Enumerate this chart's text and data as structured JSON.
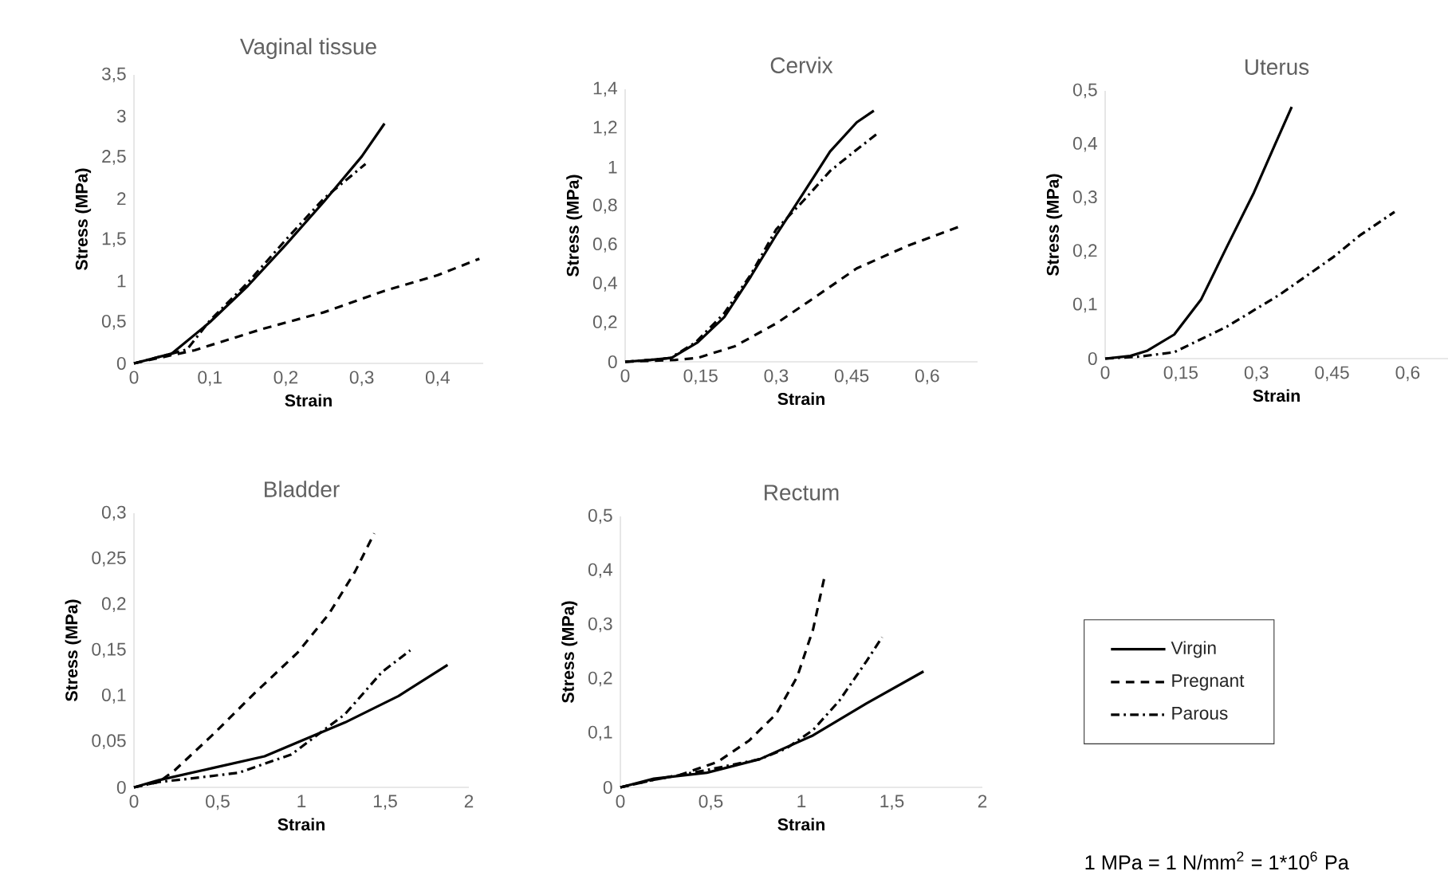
{
  "chart_data": [
    {
      "type": "line",
      "title": "Vaginal tissue",
      "xlabel": "Strain",
      "ylabel": "Stress (MPa)",
      "xlim": [
        0,
        0.46
      ],
      "ylim": [
        0,
        3.5
      ],
      "xticks": [
        0,
        {
          "value": 0.1,
          "label": "0,1"
        },
        {
          "value": 0.2,
          "label": "0,2"
        },
        {
          "value": 0.3,
          "label": "0,3"
        },
        {
          "value": 0.4,
          "label": "0,4"
        }
      ],
      "yticks": [
        0,
        {
          "value": 0.5,
          "label": "0,5"
        },
        1,
        {
          "value": 1.5,
          "label": "1,5"
        },
        2,
        {
          "value": 2.5,
          "label": "2,5"
        },
        3,
        {
          "value": 3.5,
          "label": "3,5"
        }
      ],
      "series": [
        {
          "color": "#000000",
          "line_style": "solid",
          "x": [
            0,
            0.05,
            0.1,
            0.15,
            0.2,
            0.25,
            0.3,
            0.33
          ],
          "values": [
            0,
            0.12,
            0.5,
            0.94,
            1.44,
            1.96,
            2.51,
            2.91
          ]
        },
        {
          "color": "#000000",
          "line_style": "dashed",
          "x": [
            0,
            0.05,
            0.08,
            0.17,
            0.25,
            0.33,
            0.4,
            0.455
          ],
          "values": [
            0,
            0.1,
            0.16,
            0.42,
            0.62,
            0.88,
            1.07,
            1.27
          ]
        },
        {
          "color": "#000000",
          "line_style": "dashdot",
          "x": [
            0,
            0.05,
            0.07,
            0.1,
            0.15,
            0.2,
            0.25,
            0.305
          ],
          "values": [
            0,
            0.12,
            0.17,
            0.52,
            0.98,
            1.5,
            2.0,
            2.42
          ]
        }
      ]
    },
    {
      "type": "line",
      "title": "Cervix",
      "xlabel": "Strain",
      "ylabel": "Stress (MPa)",
      "xlim": [
        0,
        0.7
      ],
      "ylim": [
        0,
        1.4
      ],
      "xticks": [
        0,
        {
          "value": 0.15,
          "label": "0,15"
        },
        {
          "value": 0.3,
          "label": "0,3"
        },
        {
          "value": 0.45,
          "label": "0,45"
        },
        {
          "value": 0.6,
          "label": "0,6"
        }
      ],
      "yticks": [
        0,
        {
          "value": 0.2,
          "label": "0,2"
        },
        {
          "value": 0.4,
          "label": "0,4"
        },
        {
          "value": 0.6,
          "label": "0,6"
        },
        {
          "value": 0.8,
          "label": "0,8"
        },
        1,
        {
          "value": 1.2,
          "label": "1,2"
        },
        {
          "value": 1.4,
          "label": "1,4"
        }
      ],
      "series": [
        {
          "color": "#000000",
          "line_style": "solid",
          "x": [
            0,
            0.05,
            0.092,
            0.144,
            0.197,
            0.25,
            0.302,
            0.355,
            0.407,
            0.46,
            0.494
          ],
          "values": [
            0,
            0.01,
            0.02,
            0.1,
            0.23,
            0.44,
            0.66,
            0.87,
            1.08,
            1.23,
            1.29
          ]
        },
        {
          "color": "#000000",
          "line_style": "dashed",
          "x": [
            0,
            0.1,
            0.144,
            0.218,
            0.302,
            0.376,
            0.46,
            0.565,
            0.67
          ],
          "values": [
            0,
            0.01,
            0.02,
            0.08,
            0.2,
            0.33,
            0.48,
            0.6,
            0.7
          ]
        },
        {
          "color": "#000000",
          "line_style": "dashdot",
          "x": [
            0,
            0.05,
            0.09,
            0.14,
            0.197,
            0.25,
            0.3,
            0.355,
            0.407,
            0.46,
            0.5
          ],
          "values": [
            0,
            0.01,
            0.02,
            0.1,
            0.25,
            0.45,
            0.68,
            0.83,
            0.98,
            1.09,
            1.17
          ]
        }
      ]
    },
    {
      "type": "line",
      "title": "Uterus",
      "xlabel": "Strain",
      "ylabel": "Stress (MPa)",
      "xlim": [
        0,
        0.68
      ],
      "ylim": [
        0,
        0.5
      ],
      "xticks": [
        0,
        {
          "value": 0.15,
          "label": "0,15"
        },
        {
          "value": 0.3,
          "label": "0,3"
        },
        {
          "value": 0.45,
          "label": "0,45"
        },
        {
          "value": 0.6,
          "label": "0,6"
        }
      ],
      "yticks": [
        0,
        {
          "value": 0.1,
          "label": "0,1"
        },
        {
          "value": 0.2,
          "label": "0,2"
        },
        {
          "value": 0.3,
          "label": "0,3"
        },
        {
          "value": 0.4,
          "label": "0,4"
        },
        {
          "value": 0.5,
          "label": "0,5"
        }
      ],
      "series": [
        {
          "color": "#000000",
          "line_style": "solid",
          "x": [
            0,
            0.05,
            0.084,
            0.137,
            0.19,
            0.242,
            0.295,
            0.337,
            0.37
          ],
          "values": [
            0,
            0.005,
            0.015,
            0.045,
            0.11,
            0.21,
            0.31,
            0.4,
            0.47
          ]
        },
        {
          "color": "#000000",
          "line_style": "dashdot",
          "x": [
            0,
            0.07,
            0.137,
            0.242,
            0.347,
            0.453,
            0.505,
            0.574
          ],
          "values": [
            0,
            0.004,
            0.012,
            0.06,
            0.12,
            0.19,
            0.23,
            0.274
          ]
        }
      ]
    },
    {
      "type": "line",
      "title": "Bladder",
      "xlabel": "Strain",
      "ylabel": "Stress (MPa)",
      "xlim": [
        0,
        2
      ],
      "ylim": [
        0,
        0.3
      ],
      "xticks": [
        0,
        {
          "value": 0.5,
          "label": "0,5"
        },
        1,
        {
          "value": 1.5,
          "label": "1,5"
        },
        2
      ],
      "yticks": [
        0,
        {
          "value": 0.05,
          "label": "0,05"
        },
        {
          "value": 0.1,
          "label": "0,1"
        },
        {
          "value": 0.15,
          "label": "0,15"
        },
        {
          "value": 0.2,
          "label": "0,2"
        },
        {
          "value": 0.25,
          "label": "0,25"
        },
        {
          "value": 0.3,
          "label": "0,3"
        }
      ],
      "series": [
        {
          "color": "#000000",
          "line_style": "solid",
          "x": [
            0,
            0.15,
            0.467,
            0.78,
            1.0,
            1.26,
            1.58,
            1.873
          ],
          "values": [
            0,
            0.008,
            0.021,
            0.034,
            0.051,
            0.071,
            0.1,
            0.134
          ]
        },
        {
          "color": "#000000",
          "line_style": "dashed",
          "x": [
            0,
            0.15,
            0.245,
            0.467,
            0.72,
            0.975,
            1.165,
            1.32,
            1.435
          ],
          "values": [
            0,
            0.006,
            0.019,
            0.057,
            0.103,
            0.147,
            0.19,
            0.236,
            0.278
          ]
        },
        {
          "color": "#000000",
          "line_style": "dashdot",
          "x": [
            0,
            0.15,
            0.31,
            0.625,
            0.94,
            1.26,
            1.48,
            1.65
          ],
          "values": [
            0,
            0.006,
            0.009,
            0.016,
            0.036,
            0.08,
            0.126,
            0.15
          ]
        }
      ]
    },
    {
      "type": "line",
      "title": "Rectum",
      "xlabel": "Strain",
      "ylabel": "Stress (MPa)",
      "xlim": [
        0,
        2
      ],
      "ylim": [
        0,
        0.5
      ],
      "legend": "right",
      "xticks": [
        0,
        {
          "value": 0.5,
          "label": "0,5"
        },
        1,
        {
          "value": 1.5,
          "label": "1,5"
        },
        2
      ],
      "yticks": [
        0,
        {
          "value": 0.1,
          "label": "0,1"
        },
        {
          "value": 0.2,
          "label": "0,2"
        },
        {
          "value": 0.3,
          "label": "0,3"
        },
        {
          "value": 0.4,
          "label": "0,4"
        },
        {
          "value": 0.5,
          "label": "0,5"
        }
      ],
      "annotations": [
        "1 MPa = 1 N/mm$^{2}$ = 1*10$^{6}$ Pa"
      ],
      "series": [
        {
          "name": "Virgin",
          "color": "#000000",
          "line_style": "solid",
          "x": [
            0,
            0.185,
            0.478,
            0.77,
            1.065,
            1.36,
            1.675
          ],
          "values": [
            0,
            0.016,
            0.027,
            0.052,
            0.096,
            0.155,
            0.214
          ]
        },
        {
          "name": "Pregnant",
          "color": "#000000",
          "line_style": "dashed",
          "x": [
            0,
            0.185,
            0.33,
            0.537,
            0.71,
            0.86,
            0.977,
            1.065,
            1.13
          ],
          "values": [
            0,
            0.014,
            0.023,
            0.047,
            0.086,
            0.135,
            0.204,
            0.292,
            0.392
          ]
        },
        {
          "name": "Parous",
          "color": "#000000",
          "line_style": "dashdot",
          "x": [
            0,
            0.185,
            0.478,
            0.77,
            0.918,
            1.065,
            1.21,
            1.36,
            1.446
          ],
          "values": [
            0,
            0.014,
            0.032,
            0.052,
            0.072,
            0.106,
            0.16,
            0.233,
            0.277
          ]
        }
      ]
    }
  ]
}
